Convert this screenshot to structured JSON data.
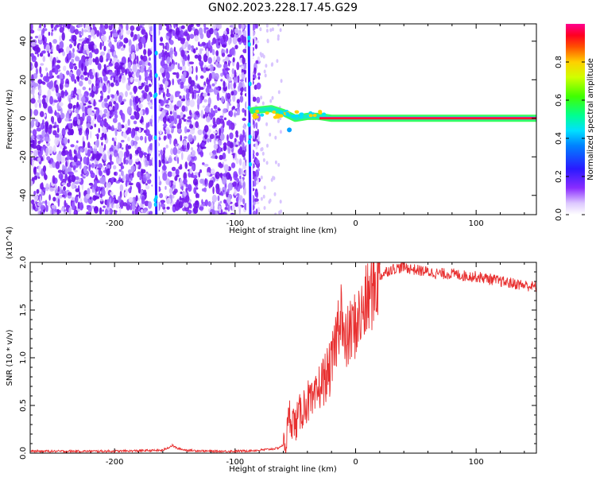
{
  "title": "GN02.2023.228.17.45.G29",
  "chart_data": [
    {
      "type": "heatmap",
      "xlabel": "Height of straight line (km)",
      "ylabel": "Frequency (Hz)",
      "xlim": [
        -270,
        150
      ],
      "ylim": [
        -50,
        49
      ],
      "xticks": [
        -200,
        -100,
        0,
        100
      ],
      "yticks": [
        -40,
        -20,
        0,
        20,
        40
      ],
      "colorbar": {
        "label": "Normalized spectral amplitude",
        "range": [
          0,
          1
        ],
        "ticks": [
          0.0,
          0.2,
          0.4,
          0.6,
          0.8
        ],
        "colors": [
          "#ffffff",
          "#7a1fff",
          "#1a1aff",
          "#00c8ff",
          "#00ff80",
          "#60ff00",
          "#ffff00",
          "#ff8000",
          "#ff0000",
          "#ff0080"
        ]
      },
      "noise_region_x": [
        -270,
        -80
      ],
      "streaks_x": [
        -166,
        -88
      ],
      "signal_line": {
        "x": [
          -85,
          -70,
          -60,
          -50,
          -40,
          -30,
          -20,
          0,
          50,
          100,
          150
        ],
        "y": [
          4,
          5,
          3,
          0,
          1,
          1,
          0,
          0,
          0,
          0,
          0
        ]
      }
    },
    {
      "type": "line",
      "xlabel": "Height of straight line (km)",
      "ylabel": "SNR (10 * v/v)",
      "y_multiplier": "(x10^4)",
      "xlim": [
        -270,
        150
      ],
      "ylim": [
        0,
        2.0
      ],
      "xticks": [
        -200,
        -100,
        0,
        100
      ],
      "yticks": [
        0.0,
        0.5,
        1.0,
        1.5,
        2.0
      ],
      "color": "#e83030",
      "series": [
        {
          "x": [
            -270,
            -250,
            -200,
            -160,
            -152,
            -148,
            -140,
            -120,
            -100,
            -80,
            -65,
            -58,
            -55,
            -50,
            -45,
            -40,
            -35,
            -30,
            -25,
            -20,
            -15,
            -12,
            -10,
            -5,
            0,
            5,
            10,
            15,
            20,
            25,
            30,
            40,
            50,
            60,
            70,
            80,
            90,
            100,
            110,
            120,
            130,
            140,
            150
          ],
          "y": [
            0.02,
            0.02,
            0.02,
            0.03,
            0.08,
            0.05,
            0.03,
            0.02,
            0.02,
            0.03,
            0.05,
            0.1,
            0.4,
            0.3,
            0.45,
            0.55,
            0.5,
            0.7,
            0.8,
            0.9,
            1.3,
            1.6,
            1.1,
            1.25,
            1.35,
            1.45,
            1.6,
            1.75,
            1.85,
            1.9,
            1.93,
            1.95,
            1.92,
            1.9,
            1.88,
            1.88,
            1.86,
            1.85,
            1.83,
            1.8,
            1.78,
            1.76,
            1.74
          ]
        }
      ]
    }
  ]
}
